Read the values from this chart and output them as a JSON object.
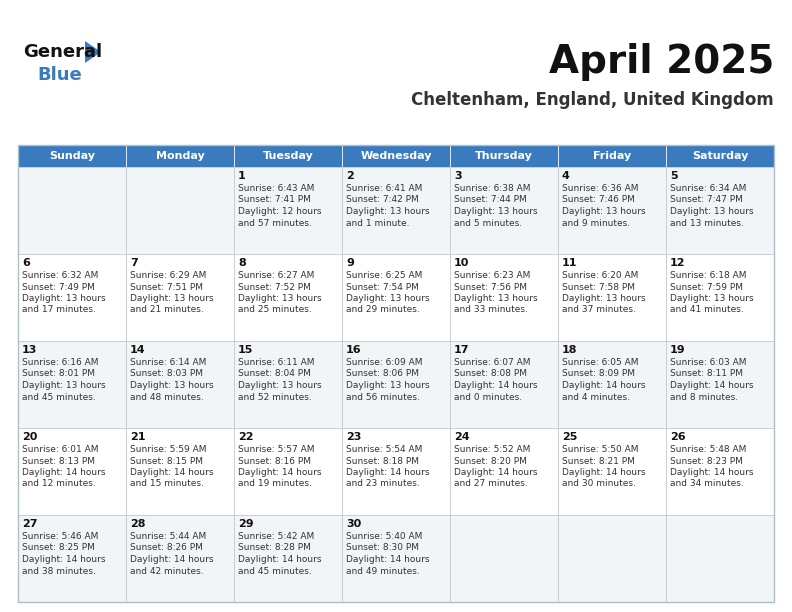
{
  "title": "April 2025",
  "subtitle": "Cheltenham, England, United Kingdom",
  "days_of_week": [
    "Sunday",
    "Monday",
    "Tuesday",
    "Wednesday",
    "Thursday",
    "Friday",
    "Saturday"
  ],
  "header_bg": "#3a7bbf",
  "header_text": "#ffffff",
  "row_bg_odd": "#f2f5f8",
  "row_bg_even": "#ffffff",
  "border_color": "#b0bec5",
  "day_num_color": "#111111",
  "cell_text_color": "#333333",
  "title_color": "#111111",
  "subtitle_color": "#333333",
  "logo_black": "#111111",
  "logo_blue": "#3a7bbf",
  "calendar": [
    [
      {
        "day": null,
        "lines": []
      },
      {
        "day": null,
        "lines": []
      },
      {
        "day": "1",
        "lines": [
          "Sunrise: 6:43 AM",
          "Sunset: 7:41 PM",
          "Daylight: 12 hours",
          "and 57 minutes."
        ]
      },
      {
        "day": "2",
        "lines": [
          "Sunrise: 6:41 AM",
          "Sunset: 7:42 PM",
          "Daylight: 13 hours",
          "and 1 minute."
        ]
      },
      {
        "day": "3",
        "lines": [
          "Sunrise: 6:38 AM",
          "Sunset: 7:44 PM",
          "Daylight: 13 hours",
          "and 5 minutes."
        ]
      },
      {
        "day": "4",
        "lines": [
          "Sunrise: 6:36 AM",
          "Sunset: 7:46 PM",
          "Daylight: 13 hours",
          "and 9 minutes."
        ]
      },
      {
        "day": "5",
        "lines": [
          "Sunrise: 6:34 AM",
          "Sunset: 7:47 PM",
          "Daylight: 13 hours",
          "and 13 minutes."
        ]
      }
    ],
    [
      {
        "day": "6",
        "lines": [
          "Sunrise: 6:32 AM",
          "Sunset: 7:49 PM",
          "Daylight: 13 hours",
          "and 17 minutes."
        ]
      },
      {
        "day": "7",
        "lines": [
          "Sunrise: 6:29 AM",
          "Sunset: 7:51 PM",
          "Daylight: 13 hours",
          "and 21 minutes."
        ]
      },
      {
        "day": "8",
        "lines": [
          "Sunrise: 6:27 AM",
          "Sunset: 7:52 PM",
          "Daylight: 13 hours",
          "and 25 minutes."
        ]
      },
      {
        "day": "9",
        "lines": [
          "Sunrise: 6:25 AM",
          "Sunset: 7:54 PM",
          "Daylight: 13 hours",
          "and 29 minutes."
        ]
      },
      {
        "day": "10",
        "lines": [
          "Sunrise: 6:23 AM",
          "Sunset: 7:56 PM",
          "Daylight: 13 hours",
          "and 33 minutes."
        ]
      },
      {
        "day": "11",
        "lines": [
          "Sunrise: 6:20 AM",
          "Sunset: 7:58 PM",
          "Daylight: 13 hours",
          "and 37 minutes."
        ]
      },
      {
        "day": "12",
        "lines": [
          "Sunrise: 6:18 AM",
          "Sunset: 7:59 PM",
          "Daylight: 13 hours",
          "and 41 minutes."
        ]
      }
    ],
    [
      {
        "day": "13",
        "lines": [
          "Sunrise: 6:16 AM",
          "Sunset: 8:01 PM",
          "Daylight: 13 hours",
          "and 45 minutes."
        ]
      },
      {
        "day": "14",
        "lines": [
          "Sunrise: 6:14 AM",
          "Sunset: 8:03 PM",
          "Daylight: 13 hours",
          "and 48 minutes."
        ]
      },
      {
        "day": "15",
        "lines": [
          "Sunrise: 6:11 AM",
          "Sunset: 8:04 PM",
          "Daylight: 13 hours",
          "and 52 minutes."
        ]
      },
      {
        "day": "16",
        "lines": [
          "Sunrise: 6:09 AM",
          "Sunset: 8:06 PM",
          "Daylight: 13 hours",
          "and 56 minutes."
        ]
      },
      {
        "day": "17",
        "lines": [
          "Sunrise: 6:07 AM",
          "Sunset: 8:08 PM",
          "Daylight: 14 hours",
          "and 0 minutes."
        ]
      },
      {
        "day": "18",
        "lines": [
          "Sunrise: 6:05 AM",
          "Sunset: 8:09 PM",
          "Daylight: 14 hours",
          "and 4 minutes."
        ]
      },
      {
        "day": "19",
        "lines": [
          "Sunrise: 6:03 AM",
          "Sunset: 8:11 PM",
          "Daylight: 14 hours",
          "and 8 minutes."
        ]
      }
    ],
    [
      {
        "day": "20",
        "lines": [
          "Sunrise: 6:01 AM",
          "Sunset: 8:13 PM",
          "Daylight: 14 hours",
          "and 12 minutes."
        ]
      },
      {
        "day": "21",
        "lines": [
          "Sunrise: 5:59 AM",
          "Sunset: 8:15 PM",
          "Daylight: 14 hours",
          "and 15 minutes."
        ]
      },
      {
        "day": "22",
        "lines": [
          "Sunrise: 5:57 AM",
          "Sunset: 8:16 PM",
          "Daylight: 14 hours",
          "and 19 minutes."
        ]
      },
      {
        "day": "23",
        "lines": [
          "Sunrise: 5:54 AM",
          "Sunset: 8:18 PM",
          "Daylight: 14 hours",
          "and 23 minutes."
        ]
      },
      {
        "day": "24",
        "lines": [
          "Sunrise: 5:52 AM",
          "Sunset: 8:20 PM",
          "Daylight: 14 hours",
          "and 27 minutes."
        ]
      },
      {
        "day": "25",
        "lines": [
          "Sunrise: 5:50 AM",
          "Sunset: 8:21 PM",
          "Daylight: 14 hours",
          "and 30 minutes."
        ]
      },
      {
        "day": "26",
        "lines": [
          "Sunrise: 5:48 AM",
          "Sunset: 8:23 PM",
          "Daylight: 14 hours",
          "and 34 minutes."
        ]
      }
    ],
    [
      {
        "day": "27",
        "lines": [
          "Sunrise: 5:46 AM",
          "Sunset: 8:25 PM",
          "Daylight: 14 hours",
          "and 38 minutes."
        ]
      },
      {
        "day": "28",
        "lines": [
          "Sunrise: 5:44 AM",
          "Sunset: 8:26 PM",
          "Daylight: 14 hours",
          "and 42 minutes."
        ]
      },
      {
        "day": "29",
        "lines": [
          "Sunrise: 5:42 AM",
          "Sunset: 8:28 PM",
          "Daylight: 14 hours",
          "and 45 minutes."
        ]
      },
      {
        "day": "30",
        "lines": [
          "Sunrise: 5:40 AM",
          "Sunset: 8:30 PM",
          "Daylight: 14 hours",
          "and 49 minutes."
        ]
      },
      {
        "day": null,
        "lines": []
      },
      {
        "day": null,
        "lines": []
      },
      {
        "day": null,
        "lines": []
      }
    ]
  ]
}
